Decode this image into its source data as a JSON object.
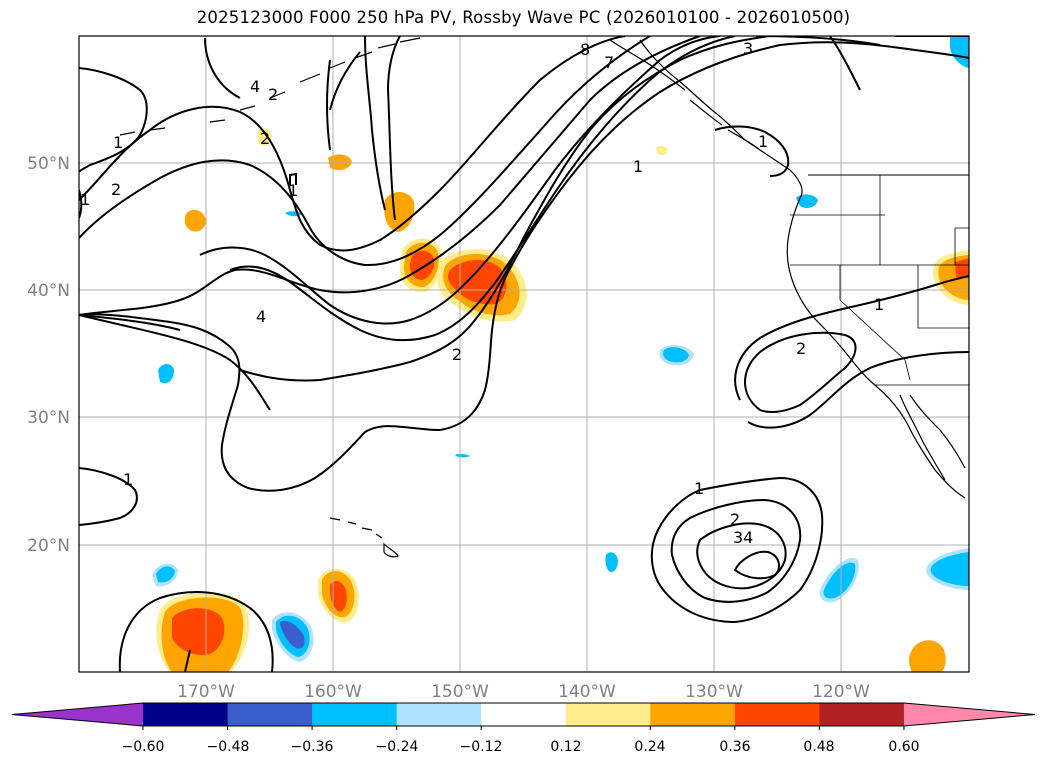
{
  "title": "2025123000 F000 250 hPa PV, Rossby Wave PC (2026010100 - 2026010500)",
  "map": {
    "lat_labels": [
      "50°N",
      "40°N",
      "30°N",
      "20°N"
    ],
    "lon_labels": [
      "170°W",
      "160°W",
      "150°W",
      "140°W",
      "130°W",
      "120°W"
    ],
    "gridlines": true,
    "contour_labels": [
      "8",
      "7",
      "3",
      "4",
      "2",
      "1",
      "2",
      "1",
      "2",
      "1",
      "4",
      "2",
      "1",
      "1",
      "2",
      "1",
      "1",
      "2",
      "34",
      "1"
    ],
    "contour_color": "#000000",
    "coastline_color": "#000000"
  },
  "colorbar": {
    "orientation": "horizontal",
    "extend": "both",
    "colors": [
      "#9933cc",
      "#00008b",
      "#3a5fcd",
      "#00bfff",
      "#b0e2ff",
      "#ffffff",
      "#ffec8b",
      "#ffa500",
      "#ff4500",
      "#b22222",
      "#ff88aa"
    ],
    "tick_labels": [
      "−0.60",
      "−0.48",
      "−0.36",
      "−0.24",
      "−0.12",
      "0.12",
      "0.24",
      "0.36",
      "0.48",
      "0.60"
    ]
  }
}
